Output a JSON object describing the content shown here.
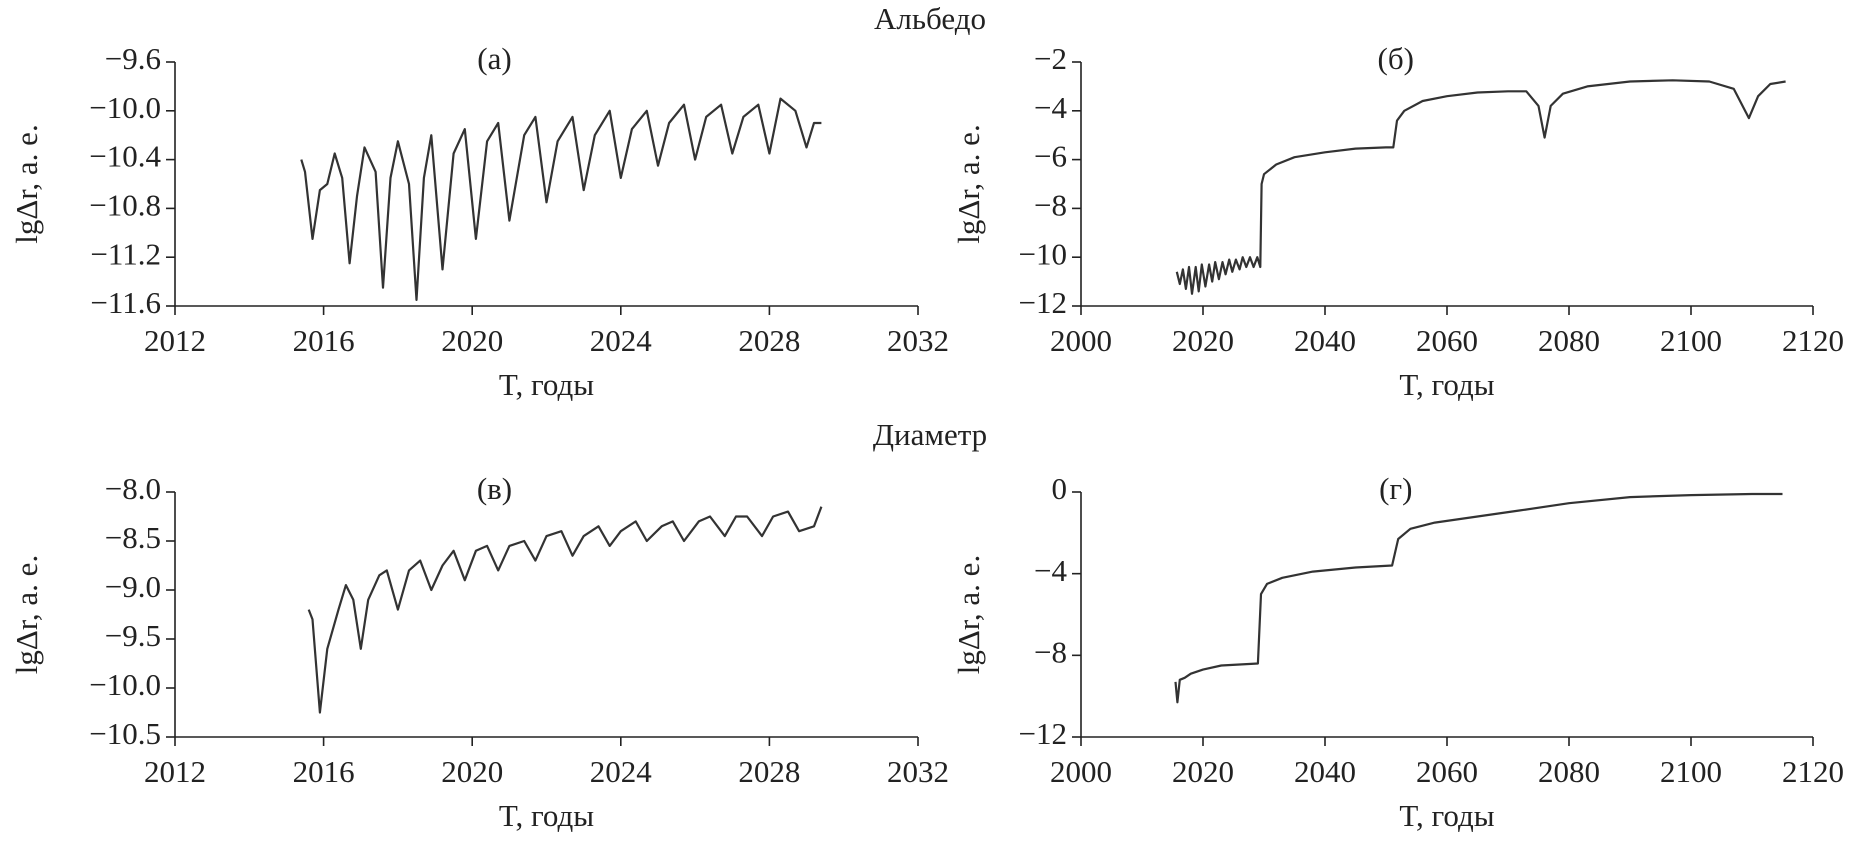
{
  "headings": [
    "Альбедо",
    "Диаметр"
  ],
  "chart_data": [
    {
      "type": "line",
      "title": "(а)",
      "xlabel": "T, годы",
      "ylabel": "lgΔr, а. е.",
      "xlim": [
        2012,
        2032
      ],
      "xticks": [
        2012,
        2016,
        2020,
        2024,
        2028,
        2032
      ],
      "ylim": [
        -11.6,
        -9.6
      ],
      "yticks": [
        {
          "value": -11.6,
          "label": "−11.6"
        },
        {
          "value": -11.2,
          "label": "−11.2"
        },
        {
          "value": -10.8,
          "label": "−10.8"
        },
        {
          "value": -10.4,
          "label": "−10.4"
        },
        {
          "value": -10.0,
          "label": "−10.0"
        },
        {
          "value": -9.6,
          "label": "−9.6"
        }
      ],
      "series": [
        {
          "color": "#333333",
          "x": [
            2015.4,
            2015.5,
            2015.7,
            2015.9,
            2016.1,
            2016.3,
            2016.5,
            2016.7,
            2016.9,
            2017.1,
            2017.4,
            2017.6,
            2017.8,
            2018.0,
            2018.3,
            2018.5,
            2018.7,
            2018.9,
            2019.2,
            2019.5,
            2019.8,
            2020.1,
            2020.4,
            2020.7,
            2021.0,
            2021.4,
            2021.7,
            2022.0,
            2022.3,
            2022.7,
            2023.0,
            2023.3,
            2023.7,
            2024.0,
            2024.3,
            2024.7,
            2025.0,
            2025.3,
            2025.7,
            2026.0,
            2026.3,
            2026.7,
            2027.0,
            2027.3,
            2027.7,
            2028.0,
            2028.3,
            2028.7,
            2029.0,
            2029.2,
            2029.4
          ],
          "values": [
            -10.4,
            -10.5,
            -11.05,
            -10.65,
            -10.6,
            -10.35,
            -10.55,
            -11.25,
            -10.7,
            -10.3,
            -10.5,
            -11.45,
            -10.55,
            -10.25,
            -10.6,
            -11.55,
            -10.55,
            -10.2,
            -11.3,
            -10.35,
            -10.15,
            -11.05,
            -10.25,
            -10.1,
            -10.9,
            -10.2,
            -10.05,
            -10.75,
            -10.25,
            -10.05,
            -10.65,
            -10.2,
            -10.0,
            -10.55,
            -10.15,
            -10.0,
            -10.45,
            -10.1,
            -9.95,
            -10.4,
            -10.05,
            -9.95,
            -10.35,
            -10.05,
            -9.95,
            -10.35,
            -9.9,
            -10.0,
            -10.3,
            -10.1,
            -10.1
          ]
        }
      ]
    },
    {
      "type": "line",
      "title": "(б)",
      "xlabel": "T, годы",
      "ylabel": "lgΔr, а. е.",
      "xlim": [
        2000,
        2120
      ],
      "xticks": [
        2000,
        2020,
        2040,
        2060,
        2080,
        2100,
        2120
      ],
      "ylim": [
        -12,
        -2
      ],
      "yticks": [
        {
          "value": -12,
          "label": "−12"
        },
        {
          "value": -10,
          "label": "−10"
        },
        {
          "value": -8,
          "label": "−8"
        },
        {
          "value": -6,
          "label": "−6"
        },
        {
          "value": -4,
          "label": "−4"
        },
        {
          "value": -2,
          "label": "−2"
        }
      ],
      "series": [
        {
          "color": "#333333",
          "x": [
            2015.7,
            2016.2,
            2016.7,
            2017.2,
            2017.7,
            2018.2,
            2018.8,
            2019.3,
            2019.8,
            2020.4,
            2021,
            2021.5,
            2022,
            2022.6,
            2023.2,
            2023.7,
            2024.3,
            2024.8,
            2025.4,
            2026,
            2026.5,
            2027.1,
            2027.7,
            2028.3,
            2028.9,
            2029.4,
            2029.6,
            2030,
            2032,
            2035,
            2040,
            2045,
            2050,
            2051.2,
            2051.8,
            2053,
            2056,
            2060,
            2065,
            2070,
            2073,
            2075,
            2076,
            2077,
            2079,
            2083,
            2090,
            2097,
            2103,
            2107,
            2109.5,
            2111,
            2113,
            2115.5
          ],
          "values": [
            -10.6,
            -11.1,
            -10.5,
            -11.3,
            -10.4,
            -11.5,
            -10.4,
            -11.4,
            -10.3,
            -11.2,
            -10.3,
            -11.0,
            -10.2,
            -10.9,
            -10.2,
            -10.7,
            -10.1,
            -10.6,
            -10.1,
            -10.5,
            -10.0,
            -10.4,
            -10.0,
            -10.4,
            -10.0,
            -10.4,
            -7.0,
            -6.6,
            -6.2,
            -5.9,
            -5.7,
            -5.55,
            -5.5,
            -5.5,
            -4.4,
            -4.0,
            -3.6,
            -3.4,
            -3.25,
            -3.2,
            -3.2,
            -3.8,
            -5.1,
            -3.8,
            -3.3,
            -3.0,
            -2.8,
            -2.75,
            -2.8,
            -3.1,
            -4.3,
            -3.4,
            -2.9,
            -2.8
          ]
        }
      ]
    },
    {
      "type": "line",
      "title": "(в)",
      "xlabel": "T, годы",
      "ylabel": "lgΔr, а. е.",
      "xlim": [
        2012,
        2032
      ],
      "xticks": [
        2012,
        2016,
        2020,
        2024,
        2028,
        2032
      ],
      "ylim": [
        -10.5,
        -8.0
      ],
      "yticks": [
        {
          "value": -10.5,
          "label": "−10.5"
        },
        {
          "value": -10.0,
          "label": "−10.0"
        },
        {
          "value": -9.5,
          "label": "−9.5"
        },
        {
          "value": -9.0,
          "label": "−9.0"
        },
        {
          "value": -8.5,
          "label": "−8.5"
        },
        {
          "value": -8.0,
          "label": "−8.0"
        }
      ],
      "series": [
        {
          "color": "#333333",
          "x": [
            2015.6,
            2015.7,
            2015.9,
            2016.1,
            2016.4,
            2016.6,
            2016.8,
            2017.0,
            2017.2,
            2017.5,
            2017.7,
            2018.0,
            2018.3,
            2018.6,
            2018.9,
            2019.2,
            2019.5,
            2019.8,
            2020.1,
            2020.4,
            2020.7,
            2021.0,
            2021.4,
            2021.7,
            2022.0,
            2022.4,
            2022.7,
            2023.0,
            2023.4,
            2023.7,
            2024.0,
            2024.4,
            2024.7,
            2025.1,
            2025.4,
            2025.7,
            2026.1,
            2026.4,
            2026.8,
            2027.1,
            2027.4,
            2027.8,
            2028.1,
            2028.5,
            2028.8,
            2029.2,
            2029.4
          ],
          "values": [
            -9.2,
            -9.3,
            -10.25,
            -9.6,
            -9.2,
            -8.95,
            -9.1,
            -9.6,
            -9.1,
            -8.85,
            -8.8,
            -9.2,
            -8.8,
            -8.7,
            -9.0,
            -8.75,
            -8.6,
            -8.9,
            -8.6,
            -8.55,
            -8.8,
            -8.55,
            -8.5,
            -8.7,
            -8.45,
            -8.4,
            -8.65,
            -8.45,
            -8.35,
            -8.55,
            -8.4,
            -8.3,
            -8.5,
            -8.35,
            -8.3,
            -8.5,
            -8.3,
            -8.25,
            -8.45,
            -8.25,
            -8.25,
            -8.45,
            -8.25,
            -8.2,
            -8.4,
            -8.35,
            -8.15
          ]
        }
      ]
    },
    {
      "type": "line",
      "title": "(г)",
      "xlabel": "T, годы",
      "ylabel": "lgΔr, а. е.",
      "xlim": [
        2000,
        2120
      ],
      "xticks": [
        2000,
        2020,
        2040,
        2060,
        2080,
        2100,
        2120
      ],
      "ylim": [
        -12,
        0
      ],
      "yticks": [
        {
          "value": -12,
          "label": "−12"
        },
        {
          "value": -8,
          "label": "−8"
        },
        {
          "value": -4,
          "label": "−4"
        },
        0
      ],
      "series": [
        {
          "color": "#333333",
          "x": [
            2015.5,
            2015.8,
            2016.2,
            2017,
            2018,
            2020,
            2023,
            2026,
            2029,
            2029.5,
            2030.5,
            2033,
            2038,
            2045,
            2051,
            2052,
            2054,
            2058,
            2065,
            2072,
            2080,
            2090,
            2100,
            2110,
            2115
          ],
          "values": [
            -9.3,
            -10.3,
            -9.2,
            -9.1,
            -8.9,
            -8.7,
            -8.5,
            -8.45,
            -8.4,
            -5.0,
            -4.5,
            -4.2,
            -3.9,
            -3.7,
            -3.6,
            -2.3,
            -1.8,
            -1.5,
            -1.2,
            -0.9,
            -0.55,
            -0.25,
            -0.15,
            -0.1,
            -0.1
          ]
        }
      ]
    }
  ]
}
